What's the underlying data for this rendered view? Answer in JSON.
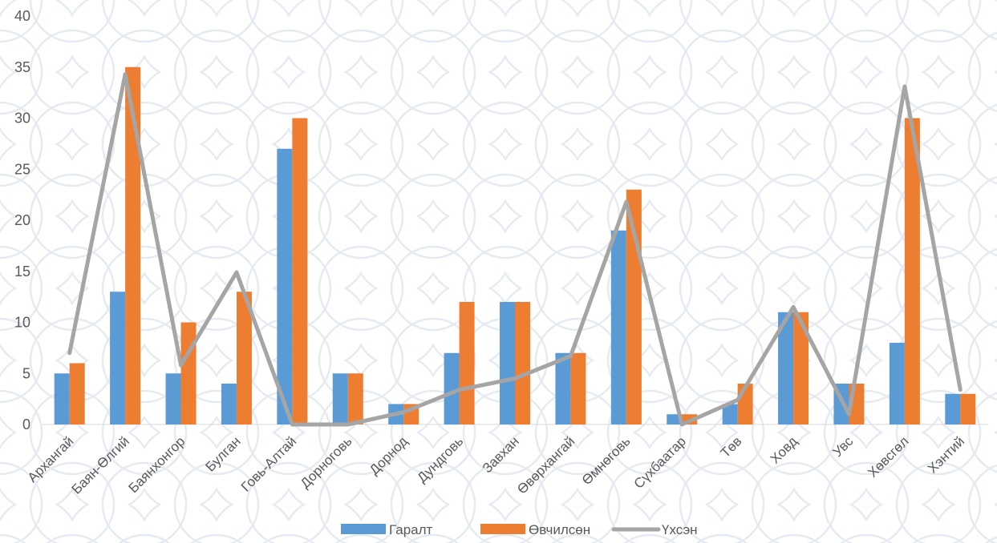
{
  "chart_data": {
    "type": "bar",
    "title": "",
    "xlabel": "",
    "ylabel": "",
    "ylim": [
      0,
      40
    ],
    "yticks": [
      0,
      5,
      10,
      15,
      20,
      25,
      30,
      35,
      40
    ],
    "grid": false,
    "legend_position": "bottom",
    "categories": [
      "Архангай",
      "Баян-Өлгий",
      "Баянхонгор",
      "Булган",
      "Говь-Алтай",
      "Дорноговь",
      "Дорнод",
      "Дундговь",
      "Завхан",
      "Өвөрхангай",
      "Өмнөговь",
      "Сүхбаатар",
      "Төв",
      "Ховд",
      "Увс",
      "Хөвсгөл",
      "Хэнтий"
    ],
    "series": [
      {
        "name": "Гаралт",
        "type": "bar",
        "color": "#5B9BD5",
        "values": [
          5,
          13,
          5,
          4,
          27,
          5,
          2,
          7,
          12,
          7,
          19,
          1,
          2,
          11,
          4,
          8,
          3
        ]
      },
      {
        "name": "Өвчилсөн",
        "type": "bar",
        "color": "#ED7D31",
        "values": [
          6,
          35,
          10,
          13,
          30,
          5,
          2,
          12,
          12,
          7,
          23,
          1,
          4,
          11,
          4,
          30,
          3
        ]
      },
      {
        "name": "Үхсэн",
        "type": "line",
        "color": "#A5A5A5",
        "values": [
          7,
          34.3,
          5.8,
          14.9,
          0,
          0,
          1.2,
          3.4,
          4.5,
          6.7,
          21.8,
          0,
          2.4,
          11.5,
          1,
          33.1,
          3.4
        ]
      }
    ]
  }
}
